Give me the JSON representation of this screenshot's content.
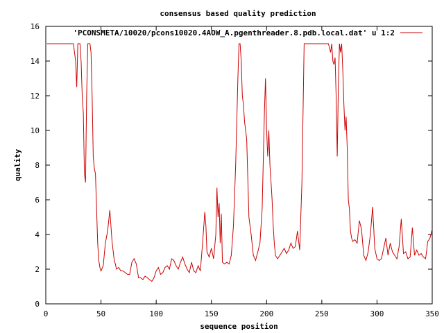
{
  "chart_data": {
    "type": "line",
    "title": "consensus based quality prediction",
    "xlabel": "sequence position",
    "ylabel": "quality",
    "xlim": [
      0,
      350
    ],
    "ylim": [
      0,
      16
    ],
    "xticks": [
      0,
      50,
      100,
      150,
      200,
      250,
      300,
      350
    ],
    "yticks": [
      0,
      2,
      4,
      6,
      8,
      10,
      12,
      14,
      16
    ],
    "grid": false,
    "legend": "top-right",
    "series": [
      {
        "name": "'PCONSMETA/10020/pcons10020.4AOW_A.pgenthreader.8.pdb.local.dat' u 1:2",
        "color": "#cc0000",
        "x": [
          1,
          25,
          27,
          28,
          29,
          30,
          31,
          32,
          33,
          34,
          35,
          36,
          37,
          38,
          39,
          40,
          41,
          42,
          43,
          44,
          45,
          46,
          47,
          48,
          49,
          50,
          52,
          54,
          56,
          58,
          60,
          62,
          63,
          64,
          66,
          68,
          70,
          72,
          74,
          76,
          78,
          80,
          82,
          84,
          86,
          88,
          90,
          92,
          94,
          96,
          98,
          100,
          102,
          104,
          106,
          108,
          110,
          112,
          114,
          116,
          118,
          120,
          122,
          124,
          126,
          128,
          130,
          132,
          134,
          136,
          138,
          140,
          142,
          144,
          145,
          146,
          148,
          150,
          152,
          154,
          155,
          156,
          157,
          158,
          159,
          160,
          162,
          164,
          166,
          168,
          170,
          172,
          174,
          175,
          176,
          177,
          178,
          179,
          180,
          182,
          184,
          186,
          188,
          190,
          192,
          194,
          196,
          198,
          199,
          200,
          201,
          202,
          203,
          204,
          205,
          206,
          207,
          208,
          210,
          212,
          214,
          216,
          218,
          220,
          222,
          224,
          226,
          228,
          230,
          232,
          234,
          236,
          238,
          240,
          242,
          244,
          246,
          248,
          250,
          252,
          254,
          256,
          258,
          259,
          260,
          261,
          262,
          263,
          264,
          265,
          266,
          267,
          268,
          269,
          270,
          271,
          272,
          273,
          274,
          275,
          276,
          277,
          278,
          280,
          282,
          284,
          286,
          288,
          290,
          292,
          294,
          296,
          298,
          300,
          302,
          304,
          306,
          308,
          310,
          312,
          314,
          316,
          318,
          320,
          322,
          324,
          326,
          328,
          330,
          332,
          334,
          336,
          338,
          340,
          342,
          344,
          346,
          348,
          350
        ],
        "y": [
          15,
          15,
          14,
          12.5,
          15,
          15,
          15,
          14,
          12,
          11,
          7.5,
          7,
          12,
          15,
          15,
          15,
          14.5,
          12,
          8.5,
          7.8,
          7.5,
          5.5,
          3.5,
          2.5,
          2.1,
          1.9,
          2.2,
          3.5,
          4.2,
          5.4,
          3.6,
          2.5,
          2.3,
          2,
          2.1,
          1.9,
          1.9,
          1.8,
          1.7,
          1.7,
          2.4,
          2.6,
          2.3,
          1.5,
          1.5,
          1.4,
          1.6,
          1.5,
          1.4,
          1.3,
          1.5,
          1.9,
          2.1,
          1.7,
          1.8,
          2.1,
          2.2,
          2,
          2.6,
          2.5,
          2.2,
          2,
          2.4,
          2.7,
          2.3,
          2,
          1.8,
          2.4,
          1.9,
          1.8,
          2.2,
          1.9,
          3.5,
          5.3,
          4.5,
          3,
          2.7,
          3.2,
          2.6,
          4,
          6.7,
          5,
          5.8,
          3.5,
          5.2,
          2.4,
          2.3,
          2.4,
          2.3,
          2.8,
          4.5,
          8,
          13,
          15,
          15,
          14,
          12,
          11.5,
          10.5,
          9.5,
          5,
          4,
          2.8,
          2.5,
          3,
          3.5,
          5.5,
          11,
          13,
          10,
          8.5,
          10,
          8,
          7,
          6,
          4.5,
          3.5,
          2.8,
          2.6,
          2.8,
          3,
          3.2,
          2.9,
          3.1,
          3.5,
          3.2,
          3.3,
          4.2,
          3.1,
          7,
          15,
          15,
          15,
          15,
          15,
          15,
          15,
          15,
          15,
          15,
          15,
          15,
          14.5,
          15,
          14,
          13.8,
          14.2,
          12,
          8.5,
          12.5,
          15,
          14.5,
          15,
          13.5,
          11.5,
          10,
          10.8,
          9,
          6,
          5.5,
          4.2,
          3.8,
          3.6,
          3.7,
          3.5,
          4.8,
          4.3,
          2.8,
          2.5,
          3,
          4,
          5.6,
          3.2,
          2.6,
          2.5,
          2.6,
          3.2,
          3.8,
          2.8,
          3.5,
          3,
          2.8,
          2.6,
          3.3,
          4.9,
          2.9,
          3,
          2.6,
          2.7,
          4.4,
          2.8,
          3.1,
          2.8,
          2.9,
          2.7,
          2.6,
          3.6,
          3.8,
          4.3
        ]
      }
    ]
  }
}
